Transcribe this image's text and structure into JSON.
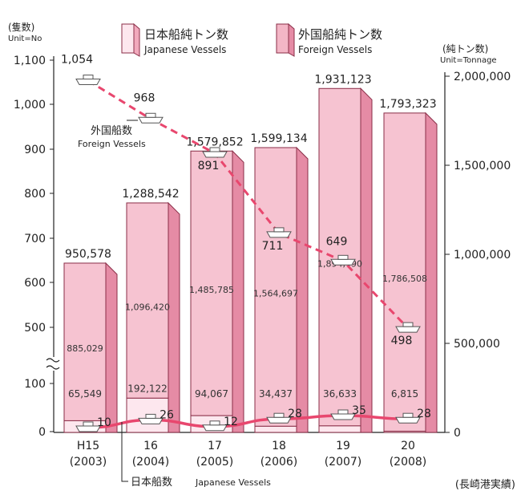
{
  "chart_data": {
    "type": "bar",
    "legend": [
      {
        "label_jp": "日本船純トン数",
        "label_en": "Japanese Vessels",
        "color": "#fbe4ea"
      },
      {
        "label_jp": "外国船純トン数",
        "label_en": "Foreign Vessels",
        "color": "#f3b6c6"
      }
    ],
    "left_axis": {
      "title_jp": "(隻数)",
      "unit": "Unit=No",
      "ylim": [
        0,
        1100
      ],
      "ticks": [
        "1,100",
        "1,000",
        "900",
        "800",
        "700",
        "600",
        "500",
        "100",
        "0"
      ]
    },
    "right_axis": {
      "title_jp": "(純トン数)",
      "unit": "Unit=Tonnage",
      "ylim": [
        0,
        2000000
      ],
      "ticks": [
        "2,000,000",
        "1,500,000",
        "1,000,000",
        "500,000",
        "0"
      ]
    },
    "categories": [
      {
        "year": "H15",
        "western": "(2003)"
      },
      {
        "year": "16",
        "western": "(2004)"
      },
      {
        "year": "17",
        "western": "(2005)"
      },
      {
        "year": "18",
        "western": "(2006)"
      },
      {
        "year": "19",
        "western": "(2007)"
      },
      {
        "year": "20",
        "western": "(2008)"
      }
    ],
    "total_tonnage": [
      950578,
      1288542,
      1579852,
      1599134,
      1931123,
      1793323
    ],
    "total_tonnage_labels": [
      "950,578",
      "1,288,542",
      "1,579,852",
      "1,599,134",
      "1,931,123",
      "1,793,323"
    ],
    "series": [
      {
        "name": "Foreign Vessels tonnage",
        "values": [
          885029,
          1096420,
          1485785,
          1564697,
          1894490,
          1786508
        ],
        "labels": [
          "885,029",
          "1,096,420",
          "1,485,785",
          "1,564,697",
          "1,894,490",
          "1,786,508"
        ]
      },
      {
        "name": "Japanese Vessels tonnage",
        "values": [
          65549,
          192122,
          94067,
          34437,
          36633,
          6815
        ],
        "labels": [
          "65,549",
          "192,122",
          "94,067",
          "34,437",
          "36,633",
          "6,815"
        ]
      },
      {
        "name": "Foreign vessel count",
        "values": [
          1054,
          968,
          891,
          711,
          649,
          498
        ],
        "labels": [
          "1,054",
          "968",
          "891",
          "711",
          "649",
          "498"
        ]
      },
      {
        "name": "Japanese vessel count",
        "values": [
          10,
          26,
          12,
          28,
          35,
          28
        ],
        "labels": [
          "10",
          "26",
          "12",
          "28",
          "35",
          "28"
        ]
      }
    ],
    "foreign_count_label": {
      "jp": "外国船数",
      "en": "Foreign Vessels"
    },
    "japanese_count_label": {
      "jp": "日本船数",
      "en": "Japanese Vessels"
    },
    "source": "(長崎港実績)",
    "colors": {
      "front": "#f6c3d1",
      "side": "#e58ba5",
      "top": "#fde7ee",
      "edge": "#8a2d47",
      "line": "#e8476e",
      "axis": "#222222"
    }
  }
}
